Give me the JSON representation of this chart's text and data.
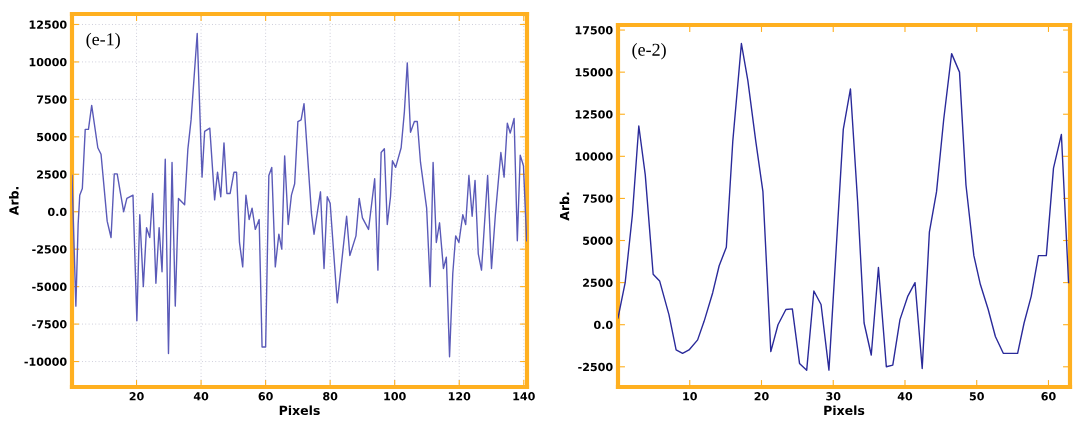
{
  "chart_data": [
    {
      "type": "line",
      "xlabel": "Pixels",
      "ylabel": "Arb.",
      "annotations": [
        "(e-1)"
      ],
      "xlim": [
        0,
        141
      ],
      "ylim": [
        -11700,
        13200
      ],
      "xticks": [
        20,
        40,
        60,
        80,
        100,
        120,
        140
      ],
      "yticks": [
        -10000,
        -7500,
        -5000,
        -2500,
        {
          "value": 0,
          "label": "0.0"
        },
        2500,
        5000,
        7500,
        10000,
        12500
      ],
      "grid": true,
      "series": [
        {
          "color": "#5a5ab8",
          "x": [
            0,
            1.2,
            1.9,
            2.4,
            3.2,
            4.1,
            5.1,
            6.1,
            8,
            9,
            10.9,
            12.1,
            13.1,
            14,
            16,
            17,
            18.9,
            20.1,
            21,
            22.1,
            23.1,
            24.1,
            25,
            26,
            27,
            27.9,
            28.9,
            29.9,
            31,
            32,
            33,
            34.9,
            35.9,
            36.9,
            38.8,
            40.3,
            41.1,
            42.7,
            44.2,
            45.1,
            46.1,
            47.1,
            48,
            49,
            50.2,
            51,
            51.9,
            52.9,
            53.9,
            54.9,
            55.8,
            56.8,
            58,
            58.9,
            60,
            61,
            61.9,
            63,
            64.1,
            65,
            65.9,
            67,
            68,
            69,
            70,
            71,
            71.9,
            74.2,
            75,
            77,
            78.1,
            79.1,
            80,
            82.2,
            85.1,
            86.1,
            88,
            89,
            90,
            91.9,
            93.8,
            94.8,
            95.8,
            96.8,
            97.7,
            98.7,
            99.3,
            100.3,
            102,
            103,
            103.9,
            104.9,
            106.1,
            107,
            108,
            109.9,
            111,
            111.9,
            112.9,
            113.9,
            115.1,
            116,
            117,
            118,
            118.9,
            119.9,
            121.1,
            122,
            123,
            124,
            124.9,
            125.9,
            126.9,
            128.8,
            130,
            131.2,
            132.9,
            133.9,
            134.9,
            135.8,
            137,
            138,
            138.9,
            139.9,
            140.9
          ],
          "values": [
            2420,
            -6300,
            -850,
            1100,
            1550,
            5500,
            5500,
            7100,
            4270,
            3840,
            -630,
            -1720,
            2530,
            2530,
            0,
            890,
            1110,
            -7280,
            -200,
            -5000,
            -1070,
            -1720,
            1220,
            -4770,
            -1070,
            -4010,
            3510,
            -9460,
            3290,
            -6300,
            890,
            460,
            4160,
            6130,
            11900,
            2310,
            5360,
            5580,
            790,
            2640,
            1000,
            4600,
            1220,
            1220,
            2640,
            2640,
            -2050,
            -3680,
            1110,
            -520,
            240,
            -1180,
            -520,
            -9030,
            -9030,
            2420,
            2960,
            -3680,
            -1500,
            -2490,
            3730,
            -850,
            1110,
            1870,
            6020,
            6130,
            7220,
            -90,
            -1500,
            1330,
            -3790,
            1000,
            570,
            -6080,
            -300,
            -2920,
            -1610,
            890,
            -410,
            -1180,
            2200,
            -3900,
            3950,
            4210,
            -850,
            1000,
            3400,
            2960,
            4270,
            6670,
            9940,
            5300,
            6020,
            6020,
            3290,
            240,
            -5000,
            3290,
            -2050,
            -740,
            -3790,
            -3030,
            -9680,
            -4120,
            -1610,
            -2050,
            -200,
            -850,
            2420,
            -300,
            2090,
            -2810,
            -3900,
            2420,
            -3790,
            -200,
            3950,
            2310,
            5910,
            5250,
            6230,
            -1940,
            3770,
            3070,
            -1940
          ]
        }
      ]
    },
    {
      "type": "line",
      "xlabel": "Pixels",
      "ylabel": "Arb.",
      "annotations": [
        "(e-2)"
      ],
      "xlim": [
        0,
        63
      ],
      "ylim": [
        -3700,
        17800
      ],
      "xticks": [
        10,
        20,
        30,
        40,
        50,
        60
      ],
      "yticks": [
        -2500,
        {
          "value": 0,
          "label": "0.0"
        },
        2500,
        5000,
        7500,
        10000,
        12500,
        15000,
        17500
      ],
      "series": [
        {
          "color": "#2a2a9a",
          "x": [
            0,
            1,
            2,
            2.9,
            3.8,
            4.9,
            5.8,
            7.1,
            8.1,
            9,
            9.9,
            11.1,
            12,
            13.2,
            14.1,
            15.1,
            16,
            17.2,
            18.1,
            19.2,
            20.2,
            21.3,
            22.3,
            23.4,
            24.3,
            25.3,
            26.3,
            27.3,
            28.3,
            29.4,
            30.3,
            31.4,
            32.4,
            33.4,
            34.3,
            35.3,
            36.3,
            37.4,
            38.3,
            39.3,
            40.4,
            41.4,
            42.4,
            43.4,
            44.4,
            45.4,
            46.5,
            47.6,
            48.5,
            49.6,
            50.5,
            51.6,
            52.6,
            53.7,
            54.7,
            55.7,
            56.6,
            57.6,
            58.6,
            59.7,
            60.7,
            61.8,
            62.8
          ],
          "values": [
            400,
            2500,
            6500,
            11800,
            8900,
            3000,
            2600,
            600,
            -1500,
            -1700,
            -1500,
            -900,
            200,
            1900,
            3500,
            4600,
            10900,
            16700,
            14500,
            10900,
            7900,
            -1600,
            0,
            900,
            940,
            -2300,
            -2700,
            2000,
            1200,
            -2700,
            3700,
            11600,
            14000,
            7300,
            100,
            -1800,
            3400,
            -2500,
            -2400,
            300,
            1700,
            2500,
            -2600,
            5500,
            7900,
            12200,
            16100,
            15000,
            8300,
            4100,
            2400,
            900,
            -700,
            -1700,
            -1700,
            -1700,
            100,
            1700,
            4100,
            4100,
            9300,
            11300,
            2500
          ]
        }
      ]
    }
  ]
}
